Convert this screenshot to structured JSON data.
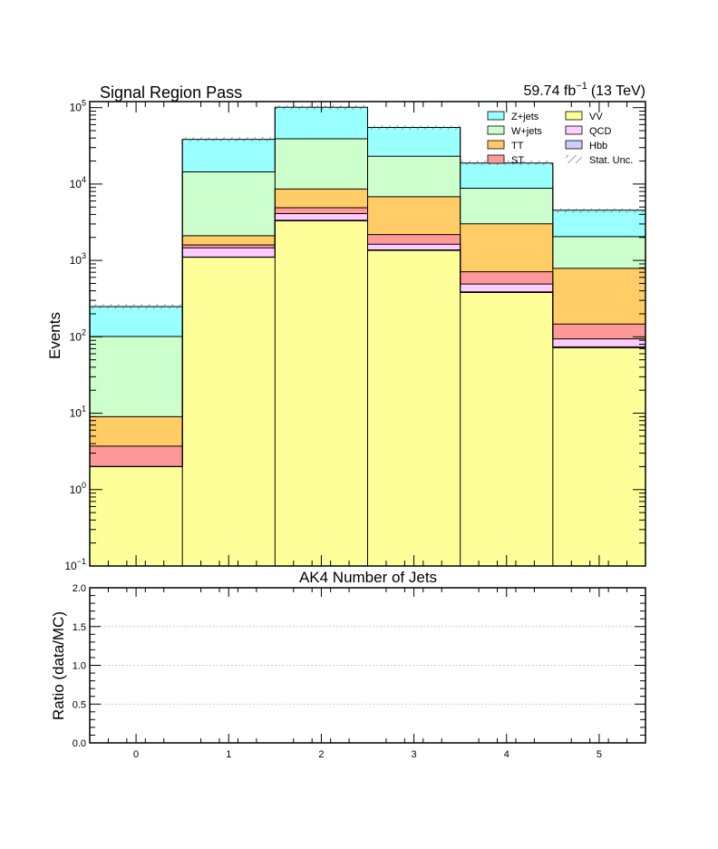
{
  "header": {
    "title": "Signal Region Pass",
    "lumi_value": "59.74 fb",
    "lumi_exponent": "−1",
    "energy": "(13 TeV)"
  },
  "chart_data": [
    {
      "type": "bar",
      "stacked": true,
      "yscale": "log",
      "ylabel": "Events",
      "xlabel": "AK4 Number of Jets",
      "ylim": [
        0.1,
        120000
      ],
      "xlim": [
        -0.5,
        5.5
      ],
      "categories": [
        "0",
        "1",
        "2",
        "3",
        "4",
        "5"
      ],
      "series": [
        {
          "name": "VV",
          "color": "#ffff99",
          "values": [
            2.0,
            1100,
            3300,
            1350,
            380,
            72
          ]
        },
        {
          "name": "Hbb",
          "color": "#ccccff",
          "values": [
            0,
            8.5,
            55,
            23,
            7.5,
            2.0
          ]
        },
        {
          "name": "QCD",
          "color": "#ffccff",
          "values": [
            0,
            350,
            745,
            257,
            103,
            20
          ]
        },
        {
          "name": "ST",
          "color": "#ff9999",
          "values": [
            1.7,
            140,
            800,
            550,
            220,
            53
          ]
        },
        {
          "name": "TT",
          "color": "#ffcc66",
          "values": [
            5.3,
            510,
            3700,
            4650,
            2300,
            640
          ]
        },
        {
          "name": "W+jets",
          "color": "#ccffcc",
          "values": [
            92,
            12300,
            30500,
            16300,
            5800,
            1260
          ]
        },
        {
          "name": "Z+jets",
          "color": "#99ffff",
          "values": [
            148,
            24000,
            62000,
            32000,
            10000,
            2500
          ]
        }
      ],
      "totals": [
        250,
        38500,
        101000,
        55000,
        19000,
        4500
      ],
      "legend": {
        "position": "top-right",
        "entries": [
          "Z+jets",
          "VV",
          "W+jets",
          "QCD",
          "TT",
          "Hbb",
          "ST",
          "Stat. Unc."
        ]
      },
      "yticks": [
        {
          "value": 0.1,
          "base": "10",
          "exp": "−1"
        },
        {
          "value": 1,
          "base": "10",
          "exp": "0"
        },
        {
          "value": 10,
          "base": "10",
          "exp": "1"
        },
        {
          "value": 100,
          "base": "10",
          "exp": "2"
        },
        {
          "value": 1000,
          "base": "10",
          "exp": "3"
        },
        {
          "value": 10000,
          "base": "10",
          "exp": "4"
        },
        {
          "value": 100000,
          "base": "10",
          "exp": "5"
        }
      ]
    },
    {
      "type": "line",
      "ylabel": "Ratio (data/MC)",
      "xlabel": "",
      "ylim": [
        0,
        2
      ],
      "xlim": [
        -0.5,
        5.5
      ],
      "grid": true,
      "series": [],
      "yticks": [
        "0.0",
        "0.5",
        "1.0",
        "1.5",
        "2.0"
      ],
      "xticks": [
        "0",
        "1",
        "2",
        "3",
        "4",
        "5"
      ]
    }
  ]
}
